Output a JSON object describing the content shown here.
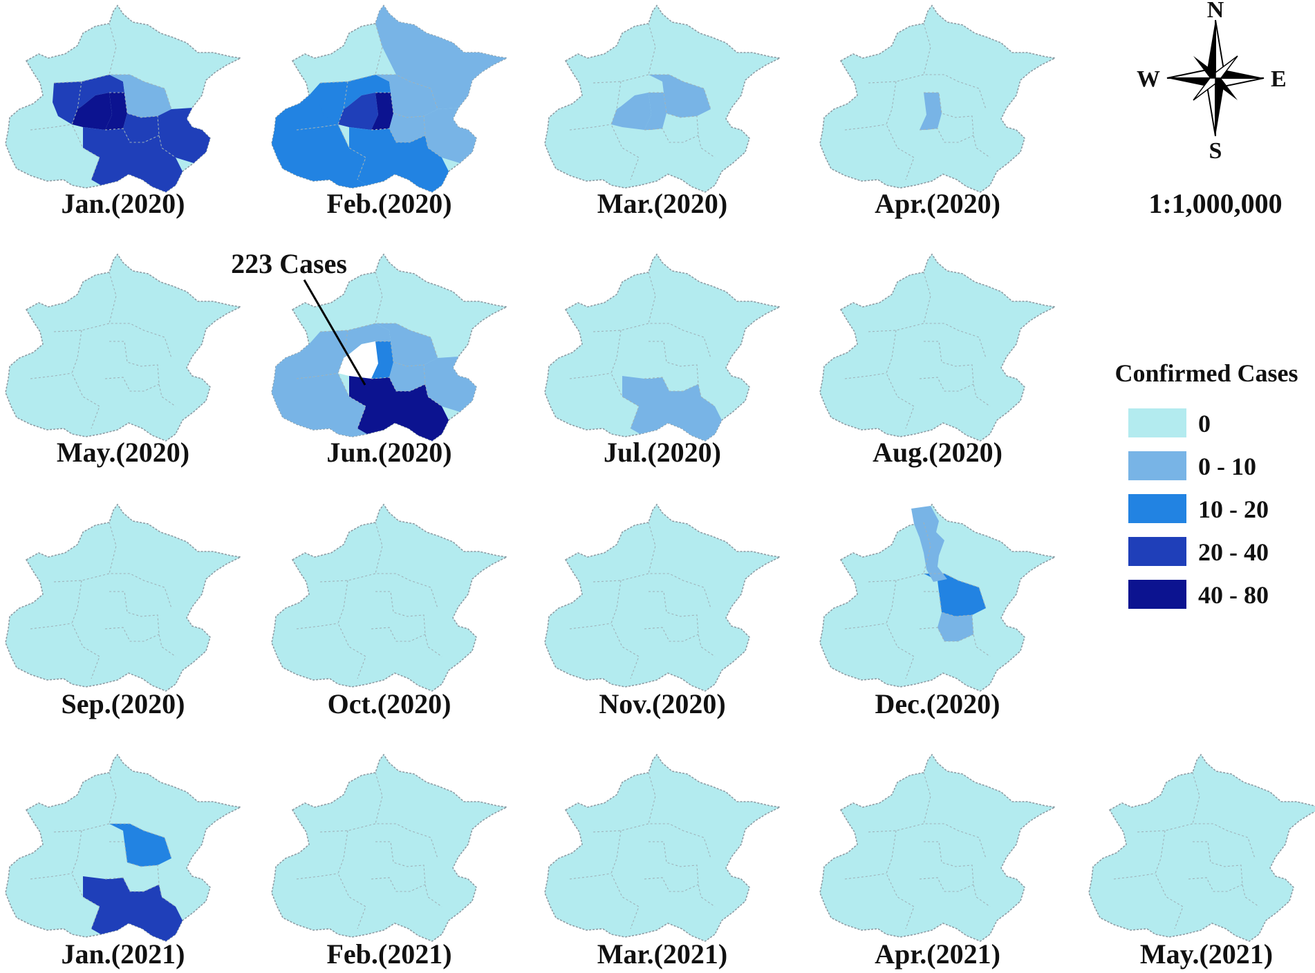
{
  "colors": {
    "class_0": "#b3ebef",
    "class_0_10": "#78b4e6",
    "class_10_20": "#2283e2",
    "class_20_40": "#1f3fb9",
    "class_40_80": "#0c1390",
    "blank": "#ffffff"
  },
  "maps": [
    {
      "label": "Jan.(2020)",
      "fills": {
        "northwest": "class_0",
        "northeast": "class_0",
        "west": "class_0",
        "southwest": "class_0",
        "north_ring": "class_20_40",
        "west_center": "class_40_80",
        "east_center": "class_0_10",
        "east_core": "class_40_80",
        "southeast_inner": "class_20_40",
        "southeast_outer": "class_20_40",
        "south": "class_20_40"
      }
    },
    {
      "label": "Feb.(2020)",
      "fills": {
        "northwest": "class_0",
        "northeast": "class_0_10",
        "west": "class_10_20",
        "southwest": "class_10_20",
        "north_ring": "class_10_20",
        "west_center": "class_20_40",
        "east_center": "class_0_10",
        "east_core": "class_40_80",
        "southeast_inner": "class_0_10",
        "southeast_outer": "class_0_10",
        "south": "class_10_20"
      }
    },
    {
      "label": "Mar.(2020)",
      "fills": {
        "northwest": "class_0",
        "northeast": "class_0",
        "west": "class_0",
        "southwest": "class_0",
        "north_ring": "class_0",
        "west_center": "class_0_10",
        "east_center": "class_0_10",
        "east_core": "class_0_10",
        "southeast_inner": "class_0",
        "southeast_outer": "class_0",
        "south": "class_0"
      }
    },
    {
      "label": "Apr.(2020)",
      "fills": {
        "northwest": "class_0",
        "northeast": "class_0",
        "west": "class_0",
        "southwest": "class_0",
        "north_ring": "class_0",
        "west_center": "class_0",
        "east_center": "class_0",
        "east_core": "class_0_10",
        "southeast_inner": "class_0",
        "southeast_outer": "class_0",
        "south": "class_0"
      }
    },
    {
      "label": "May.(2020)",
      "fills": {
        "northwest": "class_0",
        "northeast": "class_0",
        "west": "class_0",
        "southwest": "class_0",
        "north_ring": "class_0",
        "west_center": "class_0",
        "east_center": "class_0",
        "east_core": "class_0",
        "southeast_inner": "class_0",
        "southeast_outer": "class_0",
        "south": "class_0"
      }
    },
    {
      "label": "Jun.(2020)",
      "fills": {
        "northwest": "class_0",
        "northeast": "class_0",
        "west": "class_0_10",
        "southwest": "class_0_10",
        "north_ring": "class_0_10",
        "west_center": "blank",
        "east_center": "class_0_10",
        "east_core": "class_10_20",
        "southeast_inner": "class_0_10",
        "southeast_outer": "class_0_10",
        "south": "class_40_80"
      }
    },
    {
      "label": "Jul.(2020)",
      "fills": {
        "northwest": "class_0",
        "northeast": "class_0",
        "west": "class_0",
        "southwest": "class_0",
        "north_ring": "class_0",
        "west_center": "class_0",
        "east_center": "class_0",
        "east_core": "class_0",
        "southeast_inner": "class_0",
        "southeast_outer": "class_0",
        "south": "class_0_10"
      }
    },
    {
      "label": "Aug.(2020)",
      "fills": {
        "northwest": "class_0",
        "northeast": "class_0",
        "west": "class_0",
        "southwest": "class_0",
        "north_ring": "class_0",
        "west_center": "class_0",
        "east_center": "class_0",
        "east_core": "class_0",
        "southeast_inner": "class_0",
        "southeast_outer": "class_0",
        "south": "class_0"
      }
    },
    {
      "label": "Sep.(2020)",
      "fills": {
        "northwest": "class_0",
        "northeast": "class_0",
        "west": "class_0",
        "southwest": "class_0",
        "north_ring": "class_0",
        "west_center": "class_0",
        "east_center": "class_0",
        "east_core": "class_0",
        "southeast_inner": "class_0",
        "southeast_outer": "class_0",
        "south": "class_0"
      }
    },
    {
      "label": "Oct.(2020)",
      "fills": {
        "northwest": "class_0",
        "northeast": "class_0",
        "west": "class_0",
        "southwest": "class_0",
        "north_ring": "class_0",
        "west_center": "class_0",
        "east_center": "class_0",
        "east_core": "class_0",
        "southeast_inner": "class_0",
        "southeast_outer": "class_0",
        "south": "class_0"
      }
    },
    {
      "label": "Nov.(2020)",
      "fills": {
        "northwest": "class_0",
        "northeast": "class_0",
        "west": "class_0",
        "southwest": "class_0",
        "north_ring": "class_0",
        "west_center": "class_0",
        "east_center": "class_0",
        "east_core": "class_0",
        "southeast_inner": "class_0",
        "southeast_outer": "class_0",
        "south": "class_0"
      }
    },
    {
      "label": "Dec.(2020)",
      "fills": {
        "northwest": "class_0",
        "northeast": "class_0",
        "west": "class_0",
        "southwest": "class_0",
        "north_ring": "class_0",
        "west_center": "class_0",
        "east_center": "class_10_20",
        "east_core": "class_0",
        "southeast_inner": "class_0_10",
        "southeast_outer": "class_0",
        "south": "class_0",
        "north_strip": "class_0_10"
      }
    },
    {
      "label": "Jan.(2021)",
      "fills": {
        "northwest": "class_0",
        "northeast": "class_0",
        "west": "class_0",
        "southwest": "class_0",
        "north_ring": "class_0",
        "west_center": "class_0",
        "east_center": "class_10_20",
        "east_core": "class_0",
        "southeast_inner": "class_0",
        "southeast_outer": "class_0",
        "south": "class_20_40"
      }
    },
    {
      "label": "Feb.(2021)",
      "fills": {
        "northwest": "class_0",
        "northeast": "class_0",
        "west": "class_0",
        "southwest": "class_0",
        "north_ring": "class_0",
        "west_center": "class_0",
        "east_center": "class_0",
        "east_core": "class_0",
        "southeast_inner": "class_0",
        "southeast_outer": "class_0",
        "south": "class_0"
      }
    },
    {
      "label": "Mar.(2021)",
      "fills": {
        "northwest": "class_0",
        "northeast": "class_0",
        "west": "class_0",
        "southwest": "class_0",
        "north_ring": "class_0",
        "west_center": "class_0",
        "east_center": "class_0",
        "east_core": "class_0",
        "southeast_inner": "class_0",
        "southeast_outer": "class_0",
        "south": "class_0"
      }
    },
    {
      "label": "Apr.(2021)",
      "fills": {
        "northwest": "class_0",
        "northeast": "class_0",
        "west": "class_0",
        "southwest": "class_0",
        "north_ring": "class_0",
        "west_center": "class_0",
        "east_center": "class_0",
        "east_core": "class_0",
        "southeast_inner": "class_0",
        "southeast_outer": "class_0",
        "south": "class_0"
      }
    },
    {
      "label": "May.(2021)",
      "fills": {
        "northwest": "class_0",
        "northeast": "class_0",
        "west": "class_0",
        "southwest": "class_0",
        "north_ring": "class_0",
        "west_center": "class_0",
        "east_center": "class_0",
        "east_core": "class_0",
        "southeast_inner": "class_0",
        "southeast_outer": "class_0",
        "south": "class_0"
      }
    }
  ],
  "annotation": {
    "text": "223 Cases"
  },
  "compass": {
    "north": "N",
    "south": "S",
    "east": "E",
    "west": "W",
    "icon": "compass-rose-icon"
  },
  "scale": {
    "text": "1:1,000,000"
  },
  "legend": {
    "title": "Confirmed Cases",
    "items": [
      {
        "label": "0",
        "color": "class_0"
      },
      {
        "label": "0 - 10",
        "color": "class_0_10"
      },
      {
        "label": "10 - 20",
        "color": "class_10_20"
      },
      {
        "label": "20 - 40",
        "color": "class_20_40"
      },
      {
        "label": "40 - 80",
        "color": "class_40_80"
      }
    ]
  }
}
